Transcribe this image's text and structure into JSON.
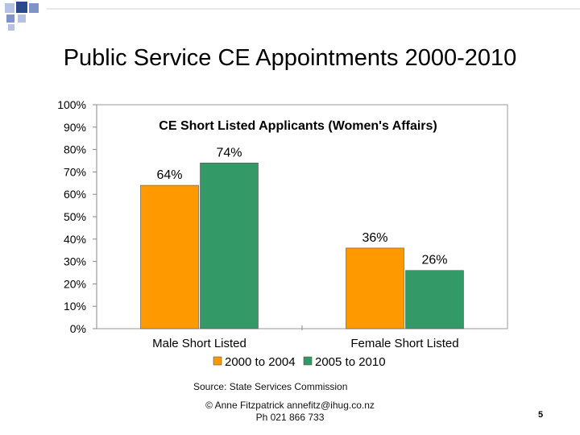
{
  "slide": {
    "title": "Public Service CE Appointments 2000-2010",
    "source": "Source: State Services Commission",
    "footer_line1": "© Anne Fitzpatrick annefitz@ihug.co.nz",
    "footer_line2": "Ph 021 866 733",
    "page_number": "5",
    "corner_colors": [
      "#2b4a8b",
      "#7f93c9",
      "#b5c2e4"
    ]
  },
  "chart_data": {
    "type": "bar",
    "title": "CE Short Listed Applicants (Women's Affairs)",
    "categories": [
      "Male Short Listed",
      "Female Short Listed"
    ],
    "series": [
      {
        "name": "2000 to 2004",
        "values": [
          64,
          36
        ],
        "labels": [
          "64%",
          "36%"
        ],
        "color": "#ff9900"
      },
      {
        "name": "2005 to 2010",
        "values": [
          74,
          26
        ],
        "labels": [
          "74%",
          "26%"
        ],
        "color": "#339966"
      }
    ],
    "ylim": [
      0,
      100
    ],
    "yticks": [
      "0%",
      "10%",
      "20%",
      "30%",
      "40%",
      "50%",
      "60%",
      "70%",
      "80%",
      "90%",
      "100%"
    ],
    "xlabel": "",
    "ylabel": "",
    "grid": false,
    "legend_position": "bottom"
  }
}
